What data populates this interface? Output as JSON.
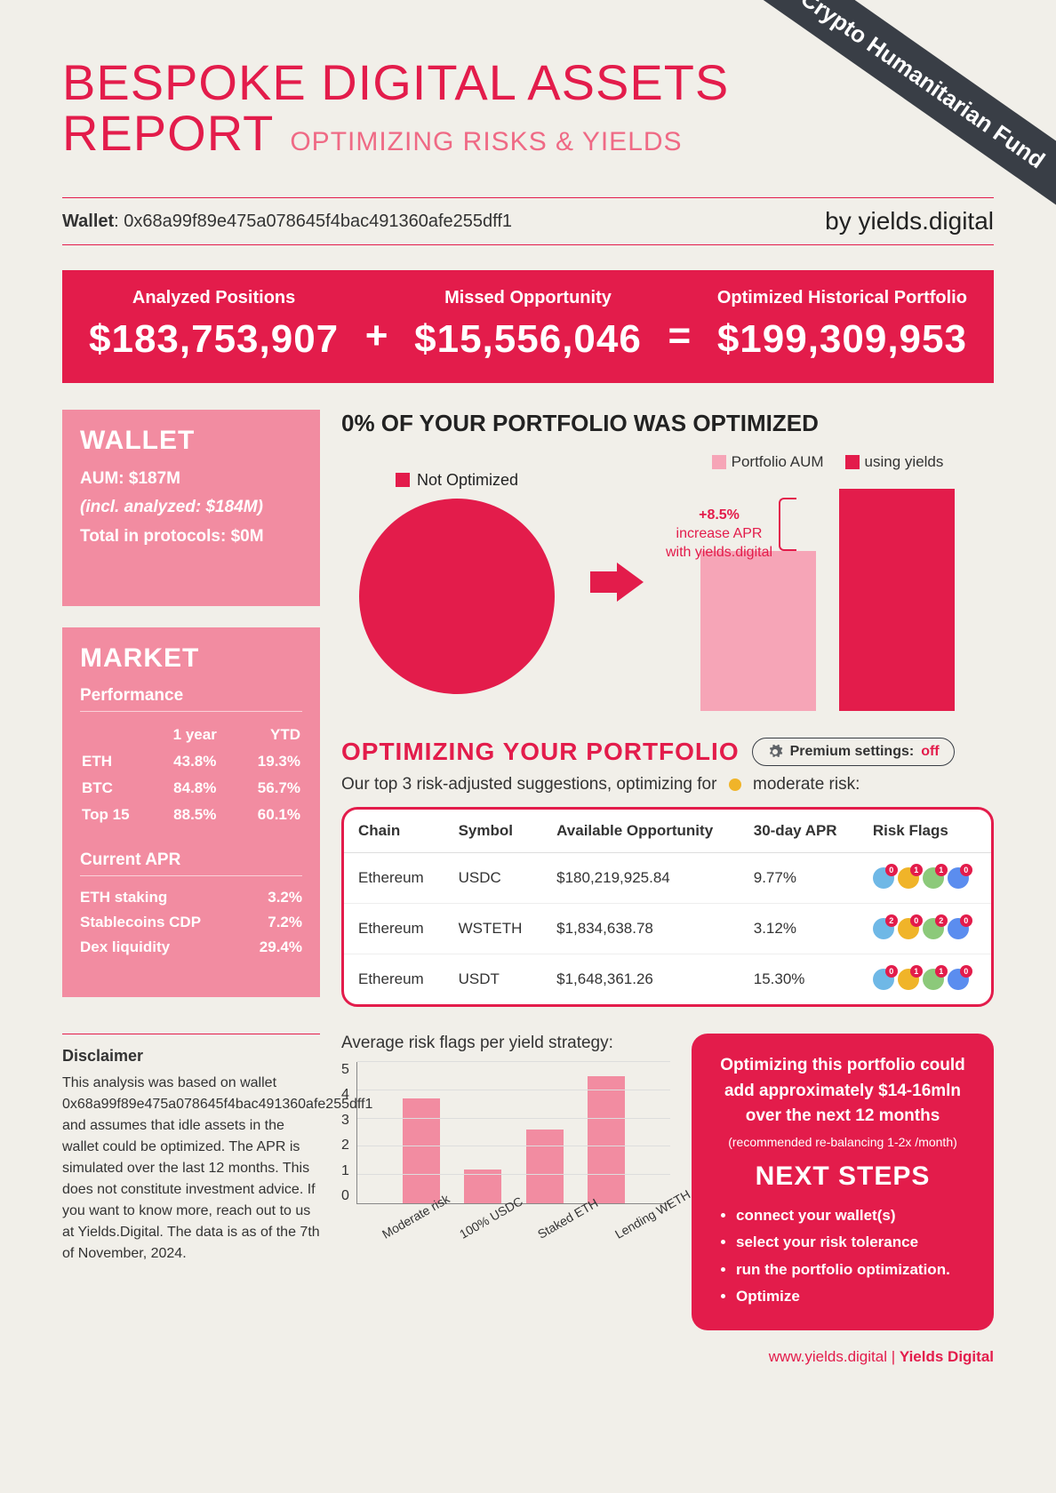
{
  "ribbon": "Crypto Humanitarian Fund",
  "title": {
    "line1": "BESPOKE DIGITAL ASSETS",
    "line2": "REPORT",
    "subtitle": "OPTIMIZING RISKS & YIELDS"
  },
  "meta": {
    "wallet_label": "Wallet",
    "wallet_address": "0x68a99f89e475a078645f4bac491360afe255dff1",
    "byline": "by yields.digital"
  },
  "kpis": {
    "analyzed_label": "Analyzed Positions",
    "analyzed_value": "$183,753,907",
    "missed_label": "Missed Opportunity",
    "missed_value": "$15,556,046",
    "optimized_label": "Optimized Historical Portfolio",
    "optimized_value": "$199,309,953",
    "plus": "+",
    "equals": "="
  },
  "wallet_panel": {
    "heading": "WALLET",
    "aum_label": "AUM:",
    "aum_value": "$187M",
    "incl": "(incl. analyzed: $184M)",
    "protocols_label": "Total in protocols:",
    "protocols_value": "$0M"
  },
  "market_panel": {
    "heading": "MARKET",
    "perf_label": "Performance",
    "col1": "1 year",
    "col2": "YTD",
    "rows": [
      {
        "name": "ETH",
        "y1": "43.8%",
        "ytd": "19.3%"
      },
      {
        "name": "BTC",
        "y1": "84.8%",
        "ytd": "56.7%"
      },
      {
        "name": "Top 15",
        "y1": "88.5%",
        "ytd": "60.1%"
      }
    ],
    "apr_label": "Current APR",
    "apr_rows": [
      {
        "name": "ETH staking",
        "val": "3.2%"
      },
      {
        "name": "Stablecoins CDP",
        "val": "7.2%"
      },
      {
        "name": "Dex liquidity",
        "val": "29.4%"
      }
    ]
  },
  "opt_chart": {
    "headline": "0% OF YOUR PORTFOLIO WAS OPTIMIZED",
    "pie_label": "Not Optimized",
    "pie_color": "#e31c4b",
    "legend1": "Portfolio AUM",
    "legend2": "using yields",
    "callout_value": "+8.5%",
    "callout_line2": "increase APR",
    "callout_line3": "with yields.digital",
    "bar1_color": "#f6a5b7",
    "bar2_color": "#e31c4b",
    "bar1_height": 180,
    "bar2_height": 250
  },
  "optimize": {
    "title": "OPTIMIZING YOUR PORTFOLIO",
    "premium_label": "Premium settings:",
    "premium_state": "off",
    "subtext_pre": "Our top 3 risk-adjusted suggestions, optimizing for",
    "risk_level": "moderate risk:",
    "risk_dot_color": "#f0b429",
    "columns": [
      "Chain",
      "Symbol",
      "Available Opportunity",
      "30-day APR",
      "Risk Flags"
    ],
    "rows": [
      {
        "chain": "Ethereum",
        "symbol": "USDC",
        "opp": "$180,219,925.84",
        "apr": "9.77%",
        "flags": [
          {
            "bg": "#6fb8e6",
            "badge": "0"
          },
          {
            "bg": "#f0b429",
            "badge": "1"
          },
          {
            "bg": "#8cc97a",
            "badge": "1"
          },
          {
            "bg": "#5b8def",
            "badge": "0"
          }
        ]
      },
      {
        "chain": "Ethereum",
        "symbol": "WSTETH",
        "opp": "$1,834,638.78",
        "apr": "3.12%",
        "flags": [
          {
            "bg": "#6fb8e6",
            "badge": "2"
          },
          {
            "bg": "#f0b429",
            "badge": "0"
          },
          {
            "bg": "#8cc97a",
            "badge": "2"
          },
          {
            "bg": "#5b8def",
            "badge": "0"
          }
        ]
      },
      {
        "chain": "Ethereum",
        "symbol": "USDT",
        "opp": "$1,648,361.26",
        "apr": "15.30%",
        "flags": [
          {
            "bg": "#6fb8e6",
            "badge": "0"
          },
          {
            "bg": "#f0b429",
            "badge": "1"
          },
          {
            "bg": "#8cc97a",
            "badge": "1"
          },
          {
            "bg": "#5b8def",
            "badge": "0"
          }
        ]
      }
    ]
  },
  "disclaimer": {
    "heading": "Disclaimer",
    "body": "This analysis was based on wallet 0x68a99f89e475a078645f4bac491360afe255dff1 and assumes that idle assets in the wallet could be optimized. The APR is simulated over the last 12 months. This does not constitute investment advice. If you want to know more, reach out to us at Yields.Digital. The data is as of the 7th of November, 2024."
  },
  "risk_chart": {
    "title": "Average risk flags per yield strategy:",
    "ymax": 5,
    "yticks": [
      "5",
      "4",
      "3",
      "2",
      "1",
      "0"
    ],
    "bars": [
      {
        "label": "Moderate risk",
        "value": 3.7
      },
      {
        "label": "100% USDC",
        "value": 1.2
      },
      {
        "label": "Staked ETH",
        "value": 2.6
      },
      {
        "label": "Lending WETH",
        "value": 4.5
      }
    ],
    "bar_color": "#f28ca1"
  },
  "next": {
    "lead": "Optimizing this portfolio could add approximately $14-16mln over the next 12 months",
    "sub": "(recommended re-balancing 1-2x /month)",
    "heading": "NEXT STEPS",
    "steps": [
      "connect your wallet(s)",
      "select your risk tolerance",
      "run the portfolio optimization.",
      "Optimize"
    ]
  },
  "footer": {
    "url": "www.yields.digital",
    "sep": " | ",
    "brand": "Yields Digital"
  },
  "colors": {
    "primary": "#e31c4b",
    "secondary": "#f28ca1",
    "dark": "#393e46",
    "bg": "#f1efe9"
  }
}
